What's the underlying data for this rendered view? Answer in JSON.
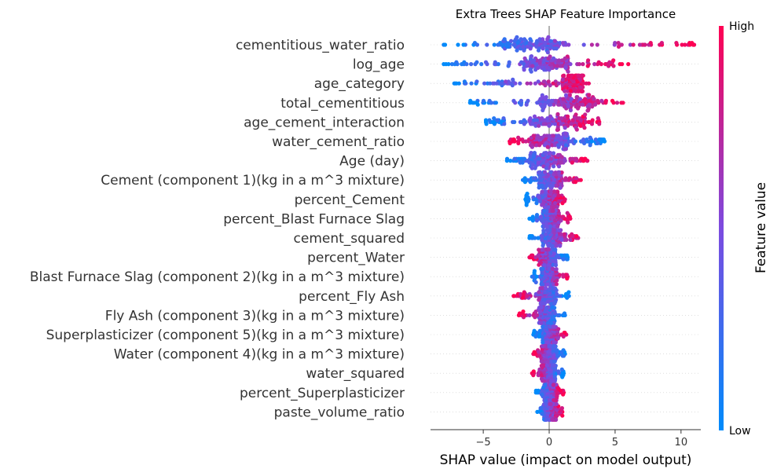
{
  "chart_data": {
    "type": "scatter",
    "subtype": "shap-beeswarm",
    "title": "Extra Trees SHAP Feature Importance",
    "xlabel": "SHAP value (impact on model output)",
    "xlim": [
      -9,
      11.5
    ],
    "xticks": [
      -5,
      0,
      5,
      10
    ],
    "xtick_labels": [
      "−5",
      "0",
      "5",
      "10"
    ],
    "colorbar": {
      "label": "Feature value",
      "high_label": "High",
      "low_label": "Low",
      "low_color": "#008bfb",
      "mid_color": "#7c4be0",
      "high_color": "#ff0052"
    },
    "features": [
      {
        "name": "cementitious_water_ratio",
        "min": -8.0,
        "max": 11.0,
        "core_min": -3.5,
        "core_max": 0.8,
        "trend": "pos",
        "density": 1.0
      },
      {
        "name": "log_age",
        "min": -8.0,
        "max": 6.0,
        "core_min": -2.0,
        "core_max": 1.5,
        "trend": "pos",
        "density": 1.0
      },
      {
        "name": "age_category",
        "min": -7.2,
        "max": 3.0,
        "core_min": 1.0,
        "core_max": 2.6,
        "trend": "pos",
        "density": 1.0
      },
      {
        "name": "total_cementitious",
        "min": -6.0,
        "max": 5.6,
        "core_min": -1.0,
        "core_max": 3.5,
        "trend": "pos",
        "density": 1.0
      },
      {
        "name": "age_cement_interaction",
        "min": -4.8,
        "max": 3.8,
        "core_min": -1.5,
        "core_max": 2.8,
        "trend": "pos",
        "density": 1.0
      },
      {
        "name": "water_cement_ratio",
        "min": -3.0,
        "max": 4.2,
        "core_min": -1.5,
        "core_max": 1.5,
        "trend": "neg",
        "density": 1.0
      },
      {
        "name": "Age (day)",
        "min": -3.2,
        "max": 2.9,
        "core_min": -1.5,
        "core_max": 1.0,
        "trend": "pos",
        "density": 0.85
      },
      {
        "name": "Cement (component 1)(kg in a m^3 mixture)",
        "min": -2.0,
        "max": 2.4,
        "core_min": -0.8,
        "core_max": 1.0,
        "trend": "pos",
        "density": 0.75
      },
      {
        "name": "percent_Cement",
        "min": -1.8,
        "max": 1.2,
        "core_min": -0.6,
        "core_max": 0.8,
        "trend": "pos",
        "density": 0.7
      },
      {
        "name": "percent_Blast Furnace Slag",
        "min": -1.5,
        "max": 1.6,
        "core_min": -0.5,
        "core_max": 0.8,
        "trend": "pos",
        "density": 0.7
      },
      {
        "name": "cement_squared",
        "min": -1.5,
        "max": 2.2,
        "core_min": -0.6,
        "core_max": 0.9,
        "trend": "pos",
        "density": 0.7
      },
      {
        "name": "percent_Water",
        "min": -1.5,
        "max": 1.4,
        "core_min": -0.8,
        "core_max": 0.6,
        "trend": "neg",
        "density": 0.7
      },
      {
        "name": "Blast Furnace Slag (component 2)(kg in a m^3 mixture)",
        "min": -1.3,
        "max": 1.4,
        "core_min": -0.6,
        "core_max": 0.6,
        "trend": "pos",
        "density": 0.7
      },
      {
        "name": "percent_Fly Ash",
        "min": -2.7,
        "max": 1.5,
        "core_min": -0.8,
        "core_max": 0.5,
        "trend": "neg",
        "density": 0.7
      },
      {
        "name": "Fly Ash (component 3)(kg in a m^3 mixture)",
        "min": -2.3,
        "max": 1.2,
        "core_min": -0.8,
        "core_max": 0.5,
        "trend": "neg",
        "density": 0.65
      },
      {
        "name": "Superplasticizer (component 5)(kg in a m^3 mixture)",
        "min": -1.2,
        "max": 1.3,
        "core_min": -0.5,
        "core_max": 0.7,
        "trend": "pos",
        "density": 0.65
      },
      {
        "name": "Water  (component 4)(kg in a m^3 mixture)",
        "min": -1.2,
        "max": 1.2,
        "core_min": -0.6,
        "core_max": 0.6,
        "trend": "neg",
        "density": 0.65
      },
      {
        "name": "water_squared",
        "min": -1.3,
        "max": 1.1,
        "core_min": -0.6,
        "core_max": 0.5,
        "trend": "neg",
        "density": 0.65
      },
      {
        "name": "percent_Superplasticizer",
        "min": -1.0,
        "max": 1.1,
        "core_min": -0.4,
        "core_max": 0.6,
        "trend": "pos",
        "density": 0.6
      },
      {
        "name": "paste_volume_ratio",
        "min": -0.9,
        "max": 1.0,
        "core_min": -0.4,
        "core_max": 0.6,
        "trend": "pos",
        "density": 0.6
      }
    ]
  }
}
